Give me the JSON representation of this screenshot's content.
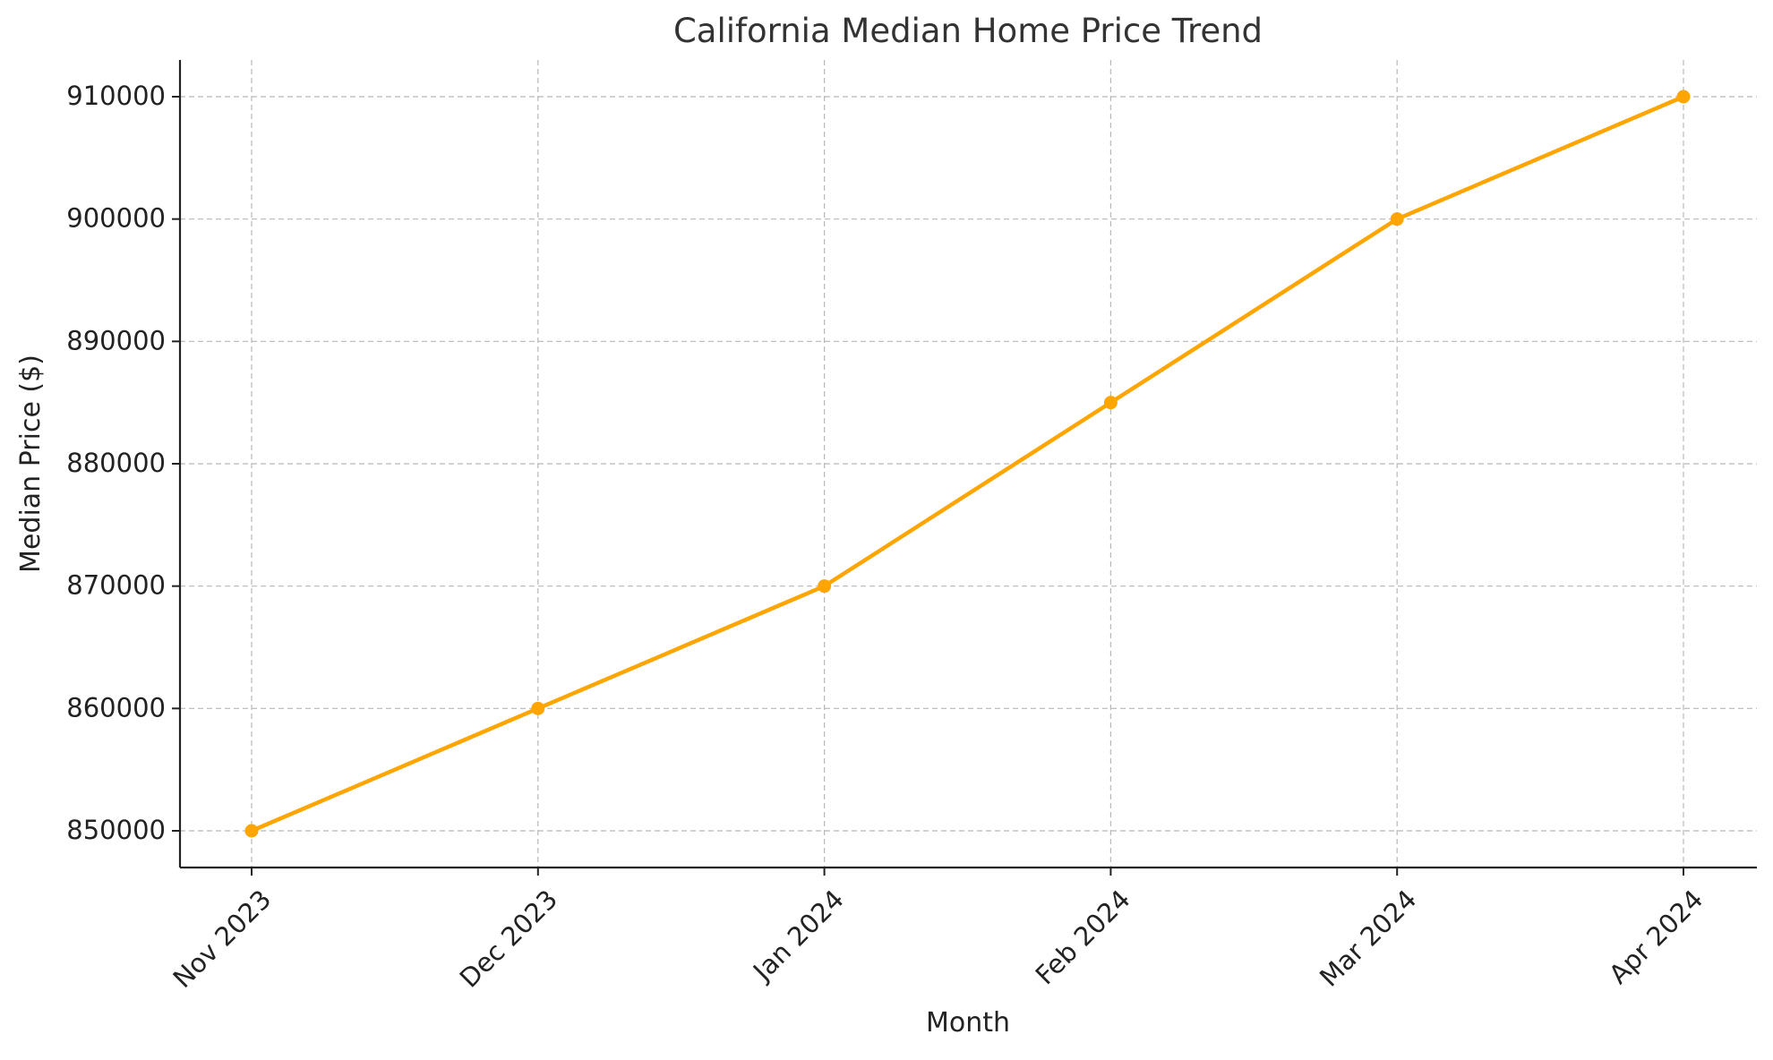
{
  "chart_data": {
    "type": "line",
    "title": "California Median Home Price Trend",
    "xlabel": "Month",
    "ylabel": "Median Price ($)",
    "categories": [
      "Nov 2023",
      "Dec 2023",
      "Jan 2024",
      "Feb 2024",
      "Mar 2024",
      "Apr 2024"
    ],
    "series": [
      {
        "values": [
          850000,
          860000,
          870000,
          885000,
          900000,
          910000
        ],
        "color": "#FFA500"
      }
    ],
    "yticks": [
      850000,
      860000,
      870000,
      880000,
      890000,
      900000,
      910000
    ],
    "ylim": [
      847000,
      913000
    ],
    "grid": true,
    "marker": "circle"
  }
}
